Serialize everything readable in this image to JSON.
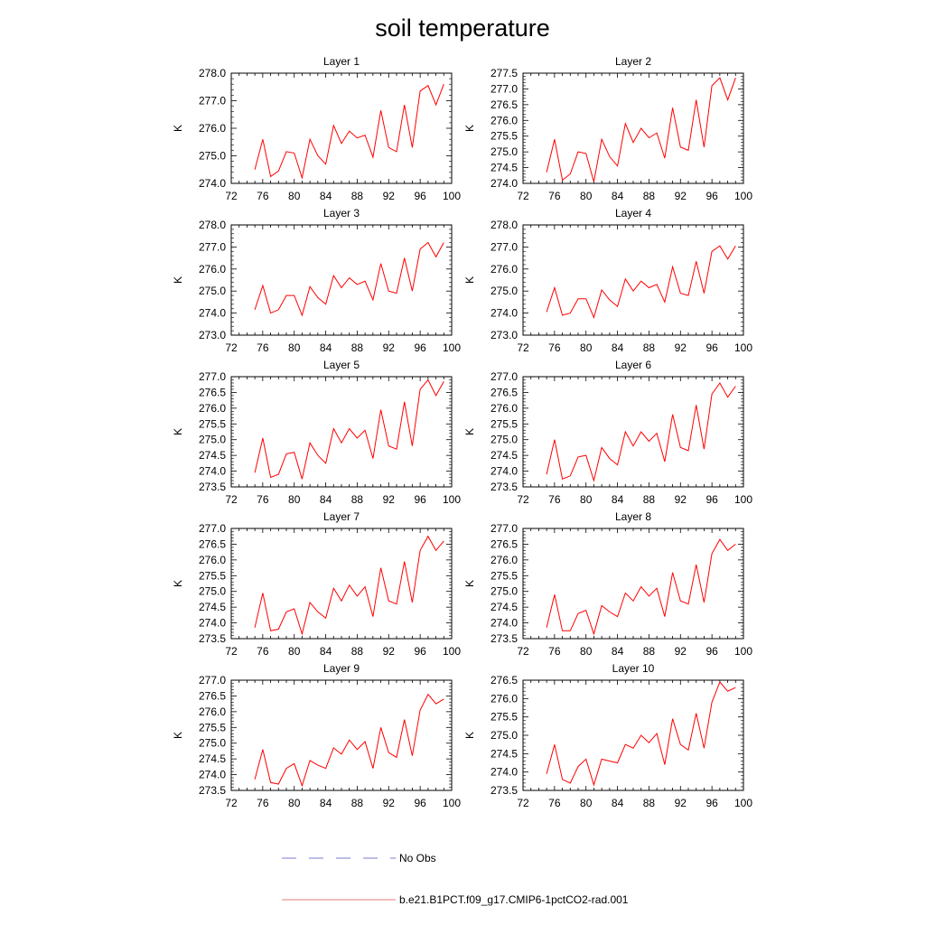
{
  "figure": {
    "title": "soil temperature",
    "legend": [
      {
        "label": "No Obs",
        "style": "dashed",
        "color": "#7b7bd0"
      },
      {
        "label": "b.e21.B1PCT.f09_g17.CMIP6-1pctCO2-rad.001",
        "style": "solid",
        "color": "#e87878"
      }
    ]
  },
  "chart_data": [
    {
      "type": "line",
      "title": "Layer 1",
      "ylabel": "K",
      "xlim": [
        72,
        100
      ],
      "ylim": [
        274.0,
        278.0
      ],
      "xticks": [
        "72",
        "76",
        "80",
        "84",
        "88",
        "92",
        "96",
        "100"
      ],
      "yticks": [
        "274.0",
        "275.0",
        "276.0",
        "277.0",
        "278.0"
      ],
      "x": [
        75,
        76,
        77,
        78,
        79,
        80,
        81,
        82,
        83,
        84,
        85,
        86,
        87,
        88,
        89,
        90,
        91,
        92,
        93,
        94,
        95,
        96,
        97,
        98,
        99
      ],
      "series": [
        {
          "color": "#ff0000",
          "values": [
            274.5,
            275.6,
            274.25,
            274.45,
            275.15,
            275.1,
            274.2,
            275.6,
            275.0,
            274.7,
            276.1,
            275.45,
            275.9,
            275.65,
            275.75,
            274.95,
            276.65,
            275.3,
            275.15,
            276.85,
            275.3,
            277.35,
            277.55,
            276.85,
            277.6
          ]
        }
      ]
    },
    {
      "type": "line",
      "title": "Layer 2",
      "ylabel": "K",
      "xlim": [
        72,
        100
      ],
      "ylim": [
        274.0,
        277.5
      ],
      "xticks": [
        "72",
        "76",
        "80",
        "84",
        "88",
        "92",
        "96",
        "100"
      ],
      "yticks": [
        "274.0",
        "274.5",
        "275.0",
        "275.5",
        "276.0",
        "276.5",
        "277.0",
        "277.5"
      ],
      "x": [
        75,
        76,
        77,
        78,
        79,
        80,
        81,
        82,
        83,
        84,
        85,
        86,
        87,
        88,
        89,
        90,
        91,
        92,
        93,
        94,
        95,
        96,
        97,
        98,
        99
      ],
      "series": [
        {
          "color": "#ff0000",
          "values": [
            274.35,
            275.4,
            274.1,
            274.3,
            275.0,
            274.95,
            274.05,
            275.4,
            274.85,
            274.55,
            275.9,
            275.3,
            275.75,
            275.45,
            275.6,
            274.8,
            276.4,
            275.15,
            275.05,
            276.65,
            275.15,
            277.1,
            277.35,
            276.65,
            277.35
          ]
        }
      ]
    },
    {
      "type": "line",
      "title": "Layer 3",
      "ylabel": "K",
      "xlim": [
        72,
        100
      ],
      "ylim": [
        273.0,
        278.0
      ],
      "xticks": [
        "72",
        "76",
        "80",
        "84",
        "88",
        "92",
        "96",
        "100"
      ],
      "yticks": [
        "273.0",
        "274.0",
        "275.0",
        "276.0",
        "277.0",
        "278.0"
      ],
      "x": [
        75,
        76,
        77,
        78,
        79,
        80,
        81,
        82,
        83,
        84,
        85,
        86,
        87,
        88,
        89,
        90,
        91,
        92,
        93,
        94,
        95,
        96,
        97,
        98,
        99
      ],
      "series": [
        {
          "color": "#ff0000",
          "values": [
            274.15,
            275.25,
            274.0,
            274.15,
            274.8,
            274.8,
            273.9,
            275.2,
            274.7,
            274.4,
            275.7,
            275.15,
            275.6,
            275.3,
            275.45,
            274.6,
            276.25,
            275.0,
            274.9,
            276.5,
            275.0,
            276.9,
            277.2,
            276.55,
            277.2
          ]
        }
      ]
    },
    {
      "type": "line",
      "title": "Layer 4",
      "ylabel": "K",
      "xlim": [
        72,
        100
      ],
      "ylim": [
        273.0,
        278.0
      ],
      "xticks": [
        "72",
        "76",
        "80",
        "84",
        "88",
        "92",
        "96",
        "100"
      ],
      "yticks": [
        "273.0",
        "274.0",
        "275.0",
        "276.0",
        "277.0",
        "278.0"
      ],
      "x": [
        75,
        76,
        77,
        78,
        79,
        80,
        81,
        82,
        83,
        84,
        85,
        86,
        87,
        88,
        89,
        90,
        91,
        92,
        93,
        94,
        95,
        96,
        97,
        98,
        99
      ],
      "series": [
        {
          "color": "#ff0000",
          "values": [
            274.05,
            275.15,
            273.9,
            274.0,
            274.65,
            274.65,
            273.8,
            275.05,
            274.6,
            274.3,
            275.55,
            275.0,
            275.45,
            275.15,
            275.3,
            274.5,
            276.1,
            274.9,
            274.8,
            276.35,
            274.9,
            276.8,
            277.05,
            276.45,
            277.05
          ]
        }
      ]
    },
    {
      "type": "line",
      "title": "Layer 5",
      "ylabel": "K",
      "xlim": [
        72,
        100
      ],
      "ylim": [
        273.5,
        277.0
      ],
      "xticks": [
        "72",
        "76",
        "80",
        "84",
        "88",
        "92",
        "96",
        "100"
      ],
      "yticks": [
        "273.5",
        "274.0",
        "274.5",
        "275.0",
        "275.5",
        "276.0",
        "276.5",
        "277.0"
      ],
      "x": [
        75,
        76,
        77,
        78,
        79,
        80,
        81,
        82,
        83,
        84,
        85,
        86,
        87,
        88,
        89,
        90,
        91,
        92,
        93,
        94,
        95,
        96,
        97,
        98,
        99
      ],
      "series": [
        {
          "color": "#ff0000",
          "values": [
            273.95,
            275.05,
            273.8,
            273.9,
            274.55,
            274.6,
            273.75,
            274.9,
            274.5,
            274.25,
            275.35,
            274.9,
            275.35,
            275.05,
            275.3,
            274.4,
            275.95,
            274.8,
            274.7,
            276.2,
            274.8,
            276.6,
            276.9,
            276.4,
            276.85
          ]
        }
      ]
    },
    {
      "type": "line",
      "title": "Layer 6",
      "ylabel": "K",
      "xlim": [
        72,
        100
      ],
      "ylim": [
        273.5,
        277.0
      ],
      "xticks": [
        "72",
        "76",
        "80",
        "84",
        "88",
        "92",
        "96",
        "100"
      ],
      "yticks": [
        "273.5",
        "274.0",
        "274.5",
        "275.0",
        "275.5",
        "276.0",
        "276.5",
        "277.0"
      ],
      "x": [
        75,
        76,
        77,
        78,
        79,
        80,
        81,
        82,
        83,
        84,
        85,
        86,
        87,
        88,
        89,
        90,
        91,
        92,
        93,
        94,
        95,
        96,
        97,
        98,
        99
      ],
      "series": [
        {
          "color": "#ff0000",
          "values": [
            273.9,
            275.0,
            273.75,
            273.85,
            274.45,
            274.5,
            273.7,
            274.75,
            274.4,
            274.2,
            275.25,
            274.8,
            275.25,
            274.95,
            275.2,
            274.3,
            275.8,
            274.75,
            274.65,
            276.1,
            274.7,
            276.45,
            276.8,
            276.35,
            276.7
          ]
        }
      ]
    },
    {
      "type": "line",
      "title": "Layer 7",
      "ylabel": "K",
      "xlim": [
        72,
        100
      ],
      "ylim": [
        273.5,
        277.0
      ],
      "xticks": [
        "72",
        "76",
        "80",
        "84",
        "88",
        "92",
        "96",
        "100"
      ],
      "yticks": [
        "273.5",
        "274.0",
        "274.5",
        "275.0",
        "275.5",
        "276.0",
        "276.5",
        "277.0"
      ],
      "x": [
        75,
        76,
        77,
        78,
        79,
        80,
        81,
        82,
        83,
        84,
        85,
        86,
        87,
        88,
        89,
        90,
        91,
        92,
        93,
        94,
        95,
        96,
        97,
        98,
        99
      ],
      "series": [
        {
          "color": "#ff0000",
          "values": [
            273.85,
            274.95,
            273.75,
            273.8,
            274.35,
            274.45,
            273.65,
            274.65,
            274.35,
            274.15,
            275.1,
            274.7,
            275.2,
            274.85,
            275.15,
            274.2,
            275.75,
            274.7,
            274.6,
            275.95,
            274.65,
            276.3,
            276.75,
            276.3,
            276.6
          ]
        }
      ]
    },
    {
      "type": "line",
      "title": "Layer 8",
      "ylabel": "K",
      "xlim": [
        72,
        100
      ],
      "ylim": [
        273.5,
        277.0
      ],
      "xticks": [
        "72",
        "76",
        "80",
        "84",
        "88",
        "92",
        "96",
        "100"
      ],
      "yticks": [
        "273.5",
        "274.0",
        "274.5",
        "275.0",
        "275.5",
        "276.0",
        "276.5",
        "277.0"
      ],
      "x": [
        75,
        76,
        77,
        78,
        79,
        80,
        81,
        82,
        83,
        84,
        85,
        86,
        87,
        88,
        89,
        90,
        91,
        92,
        93,
        94,
        95,
        96,
        97,
        98,
        99
      ],
      "series": [
        {
          "color": "#ff0000",
          "values": [
            273.85,
            274.9,
            273.75,
            273.75,
            274.3,
            274.4,
            273.65,
            274.55,
            274.35,
            274.2,
            274.95,
            274.7,
            275.15,
            274.85,
            275.1,
            274.2,
            275.6,
            274.7,
            274.6,
            275.85,
            274.65,
            276.2,
            276.65,
            276.3,
            276.5
          ]
        }
      ]
    },
    {
      "type": "line",
      "title": "Layer 9",
      "ylabel": "K",
      "xlim": [
        72,
        100
      ],
      "ylim": [
        273.5,
        277.0
      ],
      "xticks": [
        "72",
        "76",
        "80",
        "84",
        "88",
        "92",
        "96",
        "100"
      ],
      "yticks": [
        "273.5",
        "274.0",
        "274.5",
        "275.0",
        "275.5",
        "276.0",
        "276.5",
        "277.0"
      ],
      "x": [
        75,
        76,
        77,
        78,
        79,
        80,
        81,
        82,
        83,
        84,
        85,
        86,
        87,
        88,
        89,
        90,
        91,
        92,
        93,
        94,
        95,
        96,
        97,
        98,
        99
      ],
      "series": [
        {
          "color": "#ff0000",
          "values": [
            273.85,
            274.8,
            273.75,
            273.7,
            274.2,
            274.35,
            273.65,
            274.45,
            274.3,
            274.2,
            274.85,
            274.65,
            275.1,
            274.8,
            275.05,
            274.2,
            275.5,
            274.7,
            274.55,
            275.75,
            274.6,
            276.05,
            276.55,
            276.25,
            276.4
          ]
        }
      ]
    },
    {
      "type": "line",
      "title": "Layer 10",
      "ylabel": "K",
      "xlim": [
        72,
        100
      ],
      "ylim": [
        273.5,
        276.5
      ],
      "xticks": [
        "72",
        "76",
        "80",
        "84",
        "88",
        "92",
        "96",
        "100"
      ],
      "yticks": [
        "273.5",
        "274.0",
        "274.5",
        "275.0",
        "275.5",
        "276.0",
        "276.5"
      ],
      "x": [
        75,
        76,
        77,
        78,
        79,
        80,
        81,
        82,
        83,
        84,
        85,
        86,
        87,
        88,
        89,
        90,
        91,
        92,
        93,
        94,
        95,
        96,
        97,
        98,
        99
      ],
      "series": [
        {
          "color": "#ff0000",
          "values": [
            273.95,
            274.75,
            273.8,
            273.7,
            274.15,
            274.35,
            273.65,
            274.35,
            274.3,
            274.25,
            274.75,
            274.65,
            275.0,
            274.8,
            275.05,
            274.2,
            275.45,
            274.75,
            274.6,
            275.6,
            274.65,
            275.9,
            276.45,
            276.2,
            276.3
          ]
        }
      ]
    }
  ]
}
